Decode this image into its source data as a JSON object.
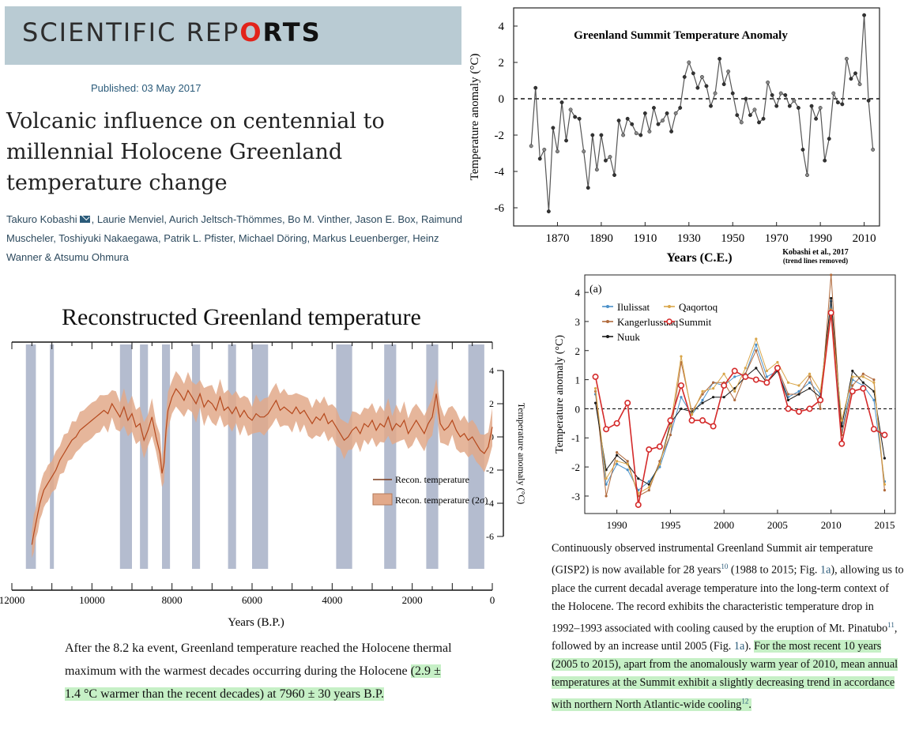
{
  "masthead": {
    "journal_pre": "SCIENTIFIC REP",
    "journal_o": "O",
    "journal_post": "RTS"
  },
  "article": {
    "published": "Published: 03 May 2017",
    "title": "Volcanic influence on centennial to millennial Holocene Greenland temperature change",
    "authors_1": "Takuro Kobashi",
    "authors_2": ", Laurie Menviel, Aurich Jeltsch-Thömmes, Bo M. Vinther, Jason E. Box, Raimund Muscheler, Toshiyuki Nakaegawa, Patrik L. Pfister, Michael Döring, Markus Leuenberger, Heinz Wanner & Atsumu Ohmura"
  },
  "colors": {
    "masthead_bg": "#b9cbd3",
    "logo_accent": "#e2231a",
    "highlight": "#c6f0c6",
    "recon_line": "#b5481c",
    "recon_band": "#e2a98a",
    "shade": "#b4bccf"
  },
  "chart_data": [
    {
      "type": "line",
      "title": "Greenland Summit Temperature Anomaly",
      "ylabel": "Temperature anomaly (°C)",
      "xlabel": "Years (C.E.)",
      "attribution": "Kobashi et al., 2017",
      "attribution_note": "(trend lines removed)",
      "xlim": [
        1850,
        2017
      ],
      "ylim": [
        -7,
        5
      ],
      "xticks": [
        "1870",
        "1890",
        "1910",
        "1930",
        "1950",
        "1970",
        "1990",
        "2010"
      ],
      "yticks": [
        "4",
        "2",
        "0",
        "-2",
        "-4",
        "-6"
      ],
      "zero_line": "dashed",
      "x": [
        1858,
        1860,
        1862,
        1864,
        1866,
        1868,
        1870,
        1872,
        1874,
        1876,
        1878,
        1880,
        1882,
        1884,
        1886,
        1888,
        1890,
        1892,
        1894,
        1896,
        1898,
        1900,
        1902,
        1904,
        1906,
        1908,
        1910,
        1912,
        1914,
        1916,
        1918,
        1920,
        1922,
        1924,
        1926,
        1928,
        1930,
        1932,
        1934,
        1936,
        1938,
        1940,
        1942,
        1944,
        1946,
        1948,
        1950,
        1952,
        1954,
        1956,
        1958,
        1960,
        1962,
        1964,
        1966,
        1968,
        1970,
        1972,
        1974,
        1976,
        1978,
        1980,
        1982,
        1984,
        1986,
        1988,
        1990,
        1992,
        1994,
        1996,
        1998,
        2000,
        2002,
        2004,
        2006,
        2008,
        2010,
        2012,
        2014
      ],
      "values": [
        -2.6,
        0.6,
        -3.3,
        -2.8,
        -6.2,
        -1.6,
        -2.9,
        -0.2,
        -2.3,
        -0.6,
        -1.0,
        -1.1,
        -2.9,
        -4.9,
        -2.0,
        -3.9,
        -2.0,
        -3.4,
        -3.2,
        -4.2,
        -1.2,
        -2.0,
        -1.1,
        -1.4,
        -1.9,
        -2.0,
        -0.8,
        -1.8,
        -0.5,
        -1.4,
        -1.2,
        -0.8,
        -1.8,
        -0.8,
        -0.5,
        1.2,
        2.0,
        1.4,
        0.6,
        1.2,
        0.7,
        -0.4,
        0.3,
        2.2,
        0.8,
        1.5,
        0.3,
        -0.9,
        -1.3,
        0.0,
        -0.9,
        -0.6,
        -1.3,
        -1.1,
        0.9,
        0.2,
        -0.4,
        0.3,
        0.2,
        -0.4,
        -0.1,
        -0.5,
        -2.8,
        -4.2,
        -0.4,
        -1.1,
        -0.5,
        -3.4,
        -2.2,
        0.3,
        -0.2,
        -0.3,
        2.2,
        1.1,
        1.4,
        0.8,
        4.6,
        -0.1,
        -2.8
      ]
    },
    {
      "type": "area",
      "title": "Reconstructed Greenland temperature",
      "xlabel": "Years (B.P.)",
      "ylabel": "Temperature anomaly (°C)",
      "xlim": [
        12000,
        0
      ],
      "ylim": [
        -6,
        4
      ],
      "xticks": [
        "12000",
        "10000",
        "8000",
        "6000",
        "4000",
        "2000",
        "0"
      ],
      "yticks": [
        "4",
        "2",
        "0",
        "-2",
        "-4",
        "-6"
      ],
      "legend": [
        "Recon. temperature",
        "Recon. temperature (2σ)"
      ],
      "legend_position": "center-right",
      "shaded_periods_bp": [
        [
          11650,
          11400
        ],
        [
          11050,
          10950
        ],
        [
          9300,
          9000
        ],
        [
          8800,
          8600
        ],
        [
          8250,
          8050
        ],
        [
          7500,
          7300
        ],
        [
          6600,
          6400
        ],
        [
          6000,
          5600
        ],
        [
          3900,
          3500
        ],
        [
          2700,
          2400
        ],
        [
          1650,
          1350
        ],
        [
          600,
          200
        ]
      ],
      "x": [
        11500,
        11450,
        11400,
        11350,
        11300,
        11250,
        11200,
        11150,
        11100,
        11000,
        10900,
        10800,
        10700,
        10600,
        10500,
        10400,
        10300,
        10200,
        10100,
        10000,
        9900,
        9800,
        9700,
        9600,
        9500,
        9400,
        9300,
        9200,
        9100,
        9000,
        8900,
        8800,
        8700,
        8600,
        8500,
        8400,
        8300,
        8250,
        8200,
        8150,
        8100,
        8000,
        7900,
        7800,
        7700,
        7600,
        7500,
        7400,
        7300,
        7200,
        7100,
        7000,
        6900,
        6800,
        6700,
        6600,
        6500,
        6400,
        6300,
        6200,
        6100,
        6000,
        5900,
        5800,
        5700,
        5600,
        5500,
        5400,
        5300,
        5200,
        5100,
        5000,
        4900,
        4800,
        4700,
        4600,
        4500,
        4400,
        4300,
        4200,
        4100,
        4000,
        3900,
        3800,
        3700,
        3600,
        3500,
        3400,
        3300,
        3200,
        3100,
        3000,
        2900,
        2800,
        2700,
        2600,
        2500,
        2400,
        2300,
        2200,
        2100,
        2000,
        1900,
        1800,
        1700,
        1600,
        1500,
        1400,
        1300,
        1200,
        1100,
        1000,
        900,
        800,
        700,
        600,
        500,
        400,
        300,
        200,
        100,
        0
      ],
      "values": [
        -6.5,
        -5.8,
        -5.2,
        -4.6,
        -4.0,
        -3.6,
        -3.2,
        -3.0,
        -2.8,
        -2.4,
        -2.0,
        -1.4,
        -1.0,
        -0.6,
        -0.2,
        0.0,
        0.4,
        0.6,
        0.8,
        1.0,
        1.2,
        1.4,
        1.6,
        1.4,
        2.0,
        1.6,
        1.2,
        1.8,
        1.0,
        1.4,
        0.6,
        0.8,
        -0.2,
        0.4,
        1.2,
        0.0,
        -1.0,
        -2.2,
        -1.6,
        0.4,
        1.6,
        2.4,
        2.9,
        2.6,
        2.2,
        2.8,
        2.4,
        2.0,
        2.6,
        1.8,
        2.2,
        2.0,
        1.6,
        2.4,
        1.6,
        1.8,
        1.4,
        1.8,
        1.2,
        1.6,
        1.2,
        1.0,
        1.4,
        1.2,
        1.2,
        1.4,
        1.8,
        2.2,
        1.6,
        1.8,
        1.6,
        1.4,
        1.8,
        1.4,
        1.6,
        1.2,
        0.8,
        1.2,
        1.0,
        1.4,
        0.8,
        1.0,
        0.6,
        0.2,
        -0.2,
        0.0,
        0.4,
        0.6,
        0.2,
        0.8,
        0.6,
        1.0,
        0.4,
        0.8,
        0.6,
        1.2,
        0.4,
        0.8,
        0.6,
        1.0,
        0.2,
        0.6,
        1.0,
        0.6,
        0.2,
        0.8,
        1.2,
        2.6,
        0.8,
        0.4,
        0.6,
        1.0,
        0.4,
        0.0,
        0.2,
        -0.2,
        0.0,
        -0.4,
        -0.8,
        -1.0,
        -0.6,
        0.6
      ]
    },
    {
      "type": "line",
      "panel_label": "(a)",
      "ylabel": "Temperature anomaly (°C)",
      "xlim": [
        1987,
        2016
      ],
      "ylim": [
        -3.6,
        4.6
      ],
      "xticks": [
        "1990",
        "1995",
        "2000",
        "2005",
        "2010",
        "2015"
      ],
      "yticks": [
        "4",
        "3",
        "2",
        "1",
        "0",
        "-1",
        "-2",
        "-3"
      ],
      "zero_line": "dashed",
      "legend_position": "top-left",
      "x": [
        1988,
        1989,
        1990,
        1991,
        1992,
        1993,
        1994,
        1995,
        1996,
        1997,
        1998,
        1999,
        2000,
        2001,
        2002,
        2003,
        2004,
        2005,
        2006,
        2007,
        2008,
        2009,
        2010,
        2011,
        2012,
        2013,
        2014,
        2015
      ],
      "series": [
        {
          "name": "Ilulissat",
          "color": "#4a90c8",
          "values": [
            0.5,
            -2.6,
            -1.9,
            -2.1,
            -2.8,
            -2.5,
            -2.0,
            -0.9,
            0.4,
            -0.2,
            0.3,
            0.9,
            0.8,
            1.1,
            1.2,
            2.2,
            1.1,
            1.3,
            0.4,
            0.6,
            0.9,
            0.5,
            3.7,
            -0.8,
            1.0,
            0.8,
            0.3,
            -2.5
          ]
        },
        {
          "name": "Kangerlussuaq",
          "color": "#b06a3c",
          "values": [
            0.6,
            -3.0,
            -1.5,
            -1.8,
            -3.0,
            -2.8,
            -1.8,
            -0.9,
            1.6,
            -0.1,
            0.5,
            0.9,
            0.9,
            0.3,
            1.2,
            2.0,
            0.9,
            1.4,
            0.5,
            0.5,
            1.1,
            0.0,
            4.6,
            -0.9,
            0.8,
            1.2,
            1.0,
            -2.8
          ]
        },
        {
          "name": "Nuuk",
          "color": "#1a1a1a",
          "values": [
            0.2,
            -2.1,
            -1.6,
            -1.9,
            -2.4,
            -2.6,
            -1.9,
            -0.5,
            0.0,
            -0.1,
            0.2,
            0.4,
            0.4,
            0.7,
            1.1,
            1.4,
            0.9,
            1.3,
            0.3,
            0.5,
            0.7,
            0.4,
            3.8,
            -0.6,
            1.3,
            0.9,
            0.6,
            -1.7
          ]
        },
        {
          "name": "Qaqortoq",
          "color": "#d9a64a",
          "values": [
            0.7,
            -2.4,
            -1.8,
            -1.9,
            -2.9,
            -2.7,
            -1.9,
            -0.6,
            1.8,
            -0.2,
            0.6,
            0.7,
            1.2,
            0.6,
            1.4,
            2.4,
            1.3,
            1.6,
            0.9,
            0.8,
            1.2,
            0.6,
            3.4,
            -0.4,
            1.1,
            1.1,
            0.9,
            -2.6
          ]
        },
        {
          "name": "Summit",
          "color": "#d42a2a",
          "values": [
            1.1,
            -0.7,
            -0.5,
            0.2,
            -3.3,
            -1.4,
            -1.3,
            -0.4,
            0.8,
            -0.4,
            -0.4,
            -0.6,
            0.8,
            1.3,
            1.1,
            1.0,
            0.9,
            1.4,
            0.0,
            -0.1,
            0.0,
            0.3,
            3.3,
            -1.2,
            0.6,
            0.7,
            -0.7,
            -0.9
          ]
        }
      ]
    }
  ],
  "para_left": {
    "plain": "After the 8.2 ka event, Greenland temperature reached the Holocene thermal maximum with the warmest decades occurring during the Holocene ",
    "highlight": "(2.9 ± 1.4 °C warmer than the recent decades) at 7960 ± 30 years B.P."
  },
  "para_right": {
    "p1": "Continuously observed instrumental Greenland Summit air temperature (GISP2) is now available for 28 years",
    "ref1": "10",
    "p2": " (1988 to 2015; Fig. ",
    "fig1": "1a",
    "p3": "), allowing us to place the current decadal average temperature into the long-term context of the Holocene. The record exhibits the characteristic temperature drop in 1992–1993 associated with cooling caused by the eruption of Mt. Pinatubo",
    "ref2": "11",
    "p4": ", followed by an increase until 2005 (Fig. ",
    "fig2": "1a",
    "p5": ").",
    "hl1": "For the most recent 10 years (2005 to 2015), apart from the anomalously warm year of 2010, mean annual temperatures at the Summit exhibit a slightly decreasing trend in accordance with northern North Atlantic-wide cooling",
    "ref3": "12",
    "hl2": "."
  }
}
